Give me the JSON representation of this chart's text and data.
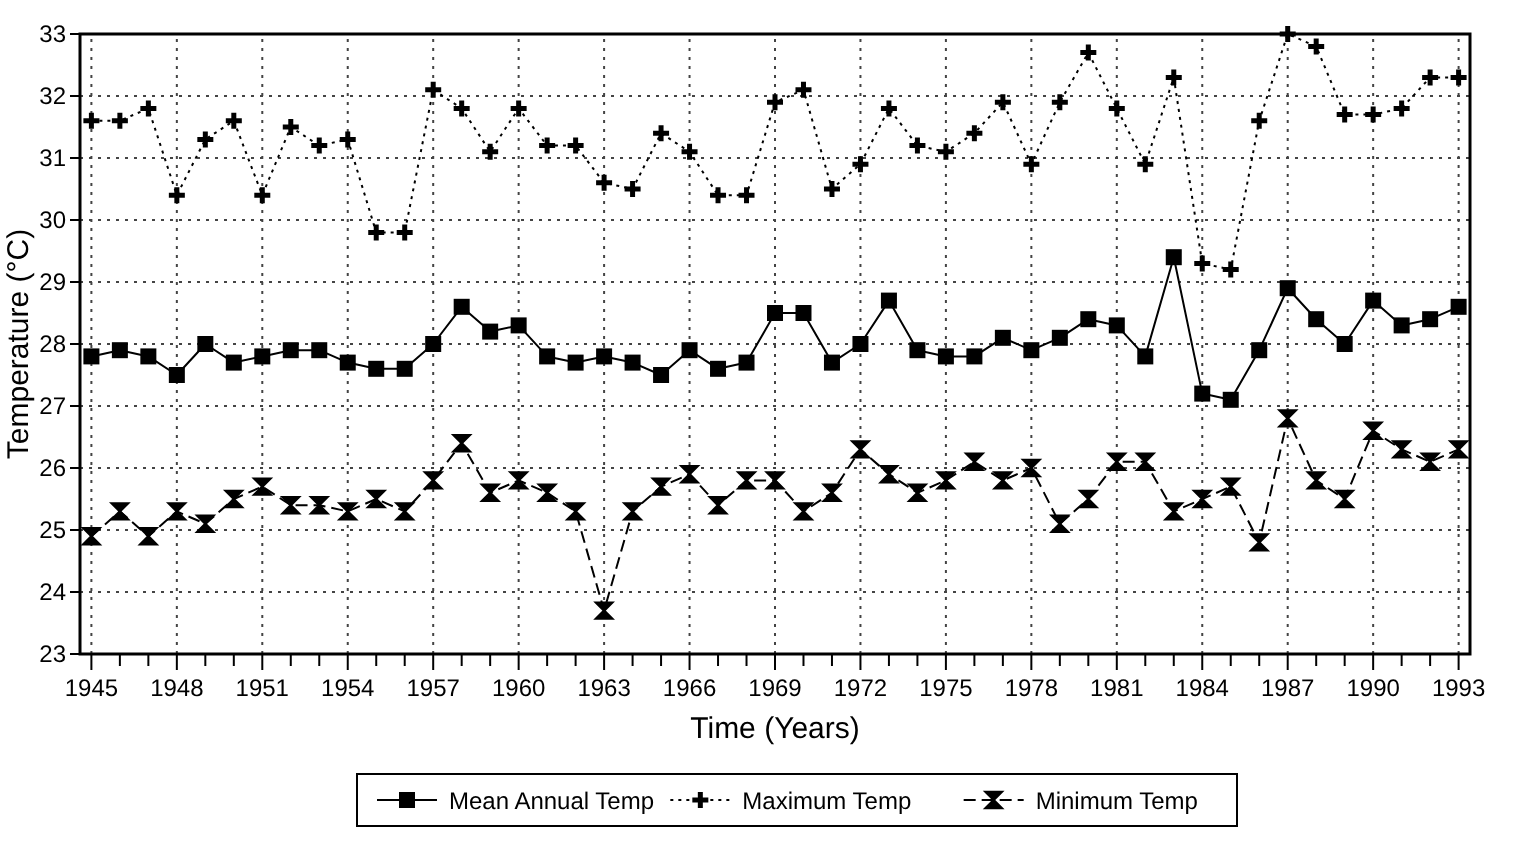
{
  "chart_data": {
    "type": "line",
    "xlabel": "Time (Years)",
    "ylabel": "Temperature (°C)",
    "x": [
      1945,
      1946,
      1947,
      1948,
      1949,
      1950,
      1951,
      1952,
      1953,
      1954,
      1955,
      1956,
      1957,
      1958,
      1959,
      1960,
      1961,
      1962,
      1963,
      1964,
      1965,
      1966,
      1967,
      1968,
      1969,
      1970,
      1971,
      1972,
      1973,
      1974,
      1975,
      1976,
      1977,
      1978,
      1979,
      1980,
      1981,
      1982,
      1983,
      1984,
      1985,
      1986,
      1987,
      1988,
      1989,
      1990,
      1991,
      1992,
      1993
    ],
    "series": [
      {
        "name": "Mean Annual Temp",
        "color": "#000000",
        "marker": "square",
        "line_style": "solid",
        "values": [
          27.8,
          27.9,
          27.8,
          27.5,
          28.0,
          27.7,
          27.8,
          27.9,
          27.9,
          27.7,
          27.6,
          27.6,
          28.0,
          28.6,
          28.2,
          28.3,
          27.8,
          27.7,
          27.8,
          27.7,
          27.5,
          27.9,
          27.6,
          27.7,
          28.5,
          28.5,
          27.7,
          28.0,
          28.7,
          27.9,
          27.8,
          27.8,
          28.1,
          27.9,
          28.1,
          28.4,
          28.3,
          27.8,
          29.4,
          27.2,
          27.1,
          27.9,
          28.9,
          28.4,
          28.0,
          28.7,
          28.3,
          28.4,
          28.6
        ]
      },
      {
        "name": "Maximum Temp",
        "color": "#000000",
        "marker": "cross",
        "line_style": "dotted",
        "values": [
          31.6,
          31.6,
          31.8,
          30.4,
          31.3,
          31.6,
          30.4,
          31.5,
          31.2,
          31.3,
          29.8,
          29.8,
          32.1,
          31.8,
          31.1,
          31.8,
          31.2,
          31.2,
          30.6,
          30.5,
          31.4,
          31.1,
          30.4,
          30.4,
          31.9,
          32.1,
          30.5,
          30.9,
          31.8,
          31.2,
          31.1,
          31.4,
          31.9,
          30.9,
          31.9,
          32.7,
          31.8,
          30.9,
          32.3,
          29.3,
          29.2,
          31.6,
          33.0,
          32.8,
          31.7,
          31.7,
          31.8,
          32.3,
          32.3
        ]
      },
      {
        "name": "Minimum Temp",
        "color": "#000000",
        "marker": "diamond",
        "line_style": "dashed",
        "values": [
          24.9,
          25.3,
          24.9,
          25.3,
          25.1,
          25.5,
          25.7,
          25.4,
          25.4,
          25.3,
          25.5,
          25.3,
          25.8,
          26.4,
          25.6,
          25.8,
          25.6,
          25.3,
          23.7,
          25.3,
          25.7,
          25.9,
          25.4,
          25.8,
          25.8,
          25.3,
          25.6,
          26.3,
          25.9,
          25.6,
          25.8,
          26.1,
          25.8,
          26.0,
          25.1,
          25.5,
          26.1,
          26.1,
          25.3,
          25.5,
          25.7,
          24.8,
          26.8,
          25.8,
          25.5,
          26.6,
          26.3,
          26.1,
          26.3
        ]
      }
    ],
    "xlim": [
      1944.6,
      1993.4
    ],
    "xticks": [
      1945,
      {
        "value": 1946,
        "label": null
      },
      {
        "value": 1947,
        "label": null
      },
      1948,
      {
        "value": 1949,
        "label": null
      },
      {
        "value": 1950,
        "label": null
      },
      1951,
      {
        "value": 1952,
        "label": null
      },
      {
        "value": 1953,
        "label": null
      },
      1954,
      {
        "value": 1955,
        "label": null
      },
      {
        "value": 1956,
        "label": null
      },
      1957,
      {
        "value": 1958,
        "label": null
      },
      {
        "value": 1959,
        "label": null
      },
      1960,
      {
        "value": 1961,
        "label": null
      },
      {
        "value": 1962,
        "label": null
      },
      1963,
      {
        "value": 1964,
        "label": null
      },
      {
        "value": 1965,
        "label": null
      },
      1966,
      {
        "value": 1967,
        "label": null
      },
      {
        "value": 1968,
        "label": null
      },
      1969,
      {
        "value": 1970,
        "label": null
      },
      {
        "value": 1971,
        "label": null
      },
      1972,
      {
        "value": 1973,
        "label": null
      },
      {
        "value": 1974,
        "label": null
      },
      1975,
      {
        "value": 1976,
        "label": null
      },
      {
        "value": 1977,
        "label": null
      },
      1978,
      {
        "value": 1979,
        "label": null
      },
      {
        "value": 1980,
        "label": null
      },
      1981,
      {
        "value": 1982,
        "label": null
      },
      {
        "value": 1983,
        "label": null
      },
      1984,
      {
        "value": 1985,
        "label": null
      },
      {
        "value": 1986,
        "label": null
      },
      1987,
      {
        "value": 1988,
        "label": null
      },
      {
        "value": 1989,
        "label": null
      },
      1990,
      {
        "value": 1991,
        "label": null
      },
      {
        "value": 1992,
        "label": null
      },
      1993
    ],
    "ylim": [
      23,
      33
    ],
    "yticks": [
      23,
      24,
      25,
      26,
      27,
      28,
      29,
      30,
      31,
      32,
      33
    ],
    "grid": true,
    "legend": "bottom"
  }
}
